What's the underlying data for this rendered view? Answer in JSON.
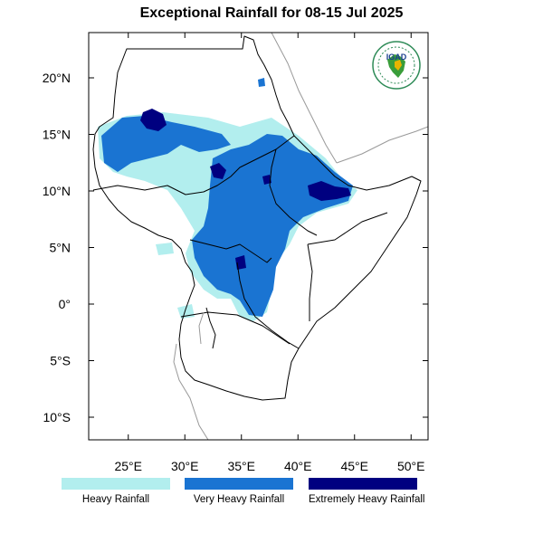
{
  "title": "Exceptional Rainfall for 08-15 Jul 2025",
  "lon_ticks": [
    {
      "value": 25,
      "label": "25°E"
    },
    {
      "value": 30,
      "label": "30°E"
    },
    {
      "value": 35,
      "label": "35°E"
    },
    {
      "value": 40,
      "label": "40°E"
    },
    {
      "value": 45,
      "label": "45°E"
    },
    {
      "value": 50,
      "label": "50°E"
    }
  ],
  "lat_ticks": [
    {
      "value": 20,
      "label": "20°N"
    },
    {
      "value": 15,
      "label": "15°N"
    },
    {
      "value": 10,
      "label": "10°N"
    },
    {
      "value": 5,
      "label": "5°N"
    },
    {
      "value": 0,
      "label": "0°"
    },
    {
      "value": -5,
      "label": "5°S"
    },
    {
      "value": -10,
      "label": "10°S"
    }
  ],
  "extent": {
    "lon": [
      21.5,
      51.5
    ],
    "lat": [
      -12,
      24
    ]
  },
  "legend": [
    {
      "label": "Heavy Rainfall",
      "color": "#b2eeee"
    },
    {
      "label": "Very Heavy Rainfall",
      "color": "#1a74d2"
    },
    {
      "label": "Extremely Heavy Rainfall",
      "color": "#000080"
    }
  ],
  "logo": {
    "text": "IGAD",
    "icon": "igad-logo-icon"
  }
}
